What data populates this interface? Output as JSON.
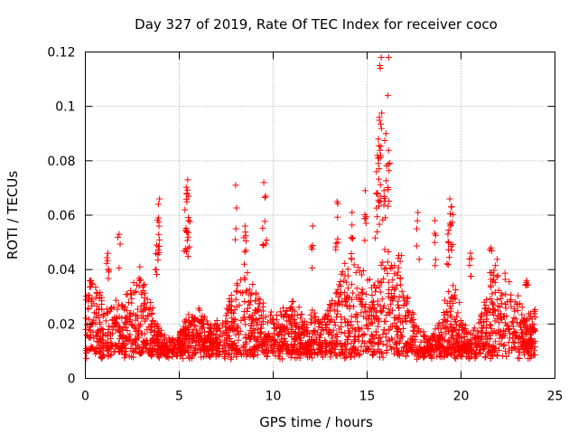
{
  "chart_data": {
    "type": "scatter",
    "title": "Day 327 of 2019, Rate Of TEC Index for receiver coco",
    "xlabel": "GPS time / hours",
    "ylabel": "ROTI / TECUs",
    "xlim": [
      0,
      25
    ],
    "ylim": [
      0,
      0.12
    ],
    "x_ticks": [
      0,
      5,
      10,
      15,
      20,
      25
    ],
    "y_ticks": [
      0,
      0.02,
      0.04,
      0.06,
      0.08,
      0.1,
      0.12
    ],
    "x_tick_labels": [
      "0",
      "5",
      "10",
      "15",
      "20",
      "25"
    ],
    "y_tick_labels": [
      "0",
      "0.02",
      "0.04",
      "0.06",
      "0.08",
      "0.1",
      "0.12"
    ],
    "grid": true,
    "marker": "+",
    "series_color": "#ff0000",
    "series": [
      {
        "name": "ROTI",
        "description": "dense scatter of per-satellite ROTI samples, baseline ~0.005-0.035 TECU/s across 0-24 h",
        "baseline_range": [
          0.005,
          0.035
        ],
        "x_range": [
          0,
          24
        ],
        "spikes": [
          {
            "x": 0.3,
            "y": 0.036
          },
          {
            "x": 1.2,
            "y": 0.046
          },
          {
            "x": 1.8,
            "y": 0.053
          },
          {
            "x": 2.9,
            "y": 0.041
          },
          {
            "x": 3.8,
            "y": 0.049
          },
          {
            "x": 3.9,
            "y": 0.059
          },
          {
            "x": 3.95,
            "y": 0.066
          },
          {
            "x": 5.3,
            "y": 0.062
          },
          {
            "x": 5.4,
            "y": 0.068
          },
          {
            "x": 5.45,
            "y": 0.073
          },
          {
            "x": 5.5,
            "y": 0.058
          },
          {
            "x": 8.0,
            "y": 0.071
          },
          {
            "x": 8.5,
            "y": 0.056
          },
          {
            "x": 9.5,
            "y": 0.072
          },
          {
            "x": 9.6,
            "y": 0.067
          },
          {
            "x": 12.1,
            "y": 0.056
          },
          {
            "x": 13.4,
            "y": 0.065
          },
          {
            "x": 14.2,
            "y": 0.061
          },
          {
            "x": 14.9,
            "y": 0.069
          },
          {
            "x": 15.5,
            "y": 0.076
          },
          {
            "x": 15.55,
            "y": 0.082
          },
          {
            "x": 15.6,
            "y": 0.088
          },
          {
            "x": 15.65,
            "y": 0.096
          },
          {
            "x": 15.7,
            "y": 0.114
          },
          {
            "x": 15.75,
            "y": 0.118
          },
          {
            "x": 15.9,
            "y": 0.069
          },
          {
            "x": 16.0,
            "y": 0.09
          },
          {
            "x": 16.1,
            "y": 0.104
          },
          {
            "x": 16.15,
            "y": 0.118
          },
          {
            "x": 17.7,
            "y": 0.061
          },
          {
            "x": 18.6,
            "y": 0.058
          },
          {
            "x": 19.4,
            "y": 0.066
          },
          {
            "x": 19.5,
            "y": 0.063
          },
          {
            "x": 19.3,
            "y": 0.053
          },
          {
            "x": 20.5,
            "y": 0.046
          },
          {
            "x": 21.6,
            "y": 0.048
          },
          {
            "x": 23.5,
            "y": 0.036
          }
        ]
      }
    ]
  }
}
